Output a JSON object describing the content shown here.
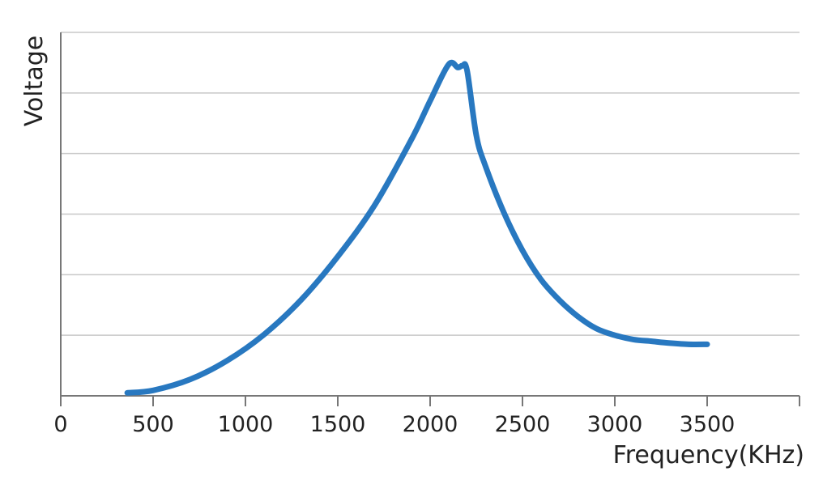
{
  "chart_data": {
    "type": "line",
    "title": "",
    "xlabel": "Frequency(KHz)",
    "ylabel": "Voltage",
    "xlim": [
      0,
      4000
    ],
    "ylim": [
      0,
      6
    ],
    "x_ticks": [
      0,
      500,
      1000,
      1500,
      2000,
      2500,
      3000,
      3500
    ],
    "x_tick_labels": [
      "0",
      "500",
      "1000",
      "1500",
      "2000",
      "2500",
      "3000",
      "3500"
    ],
    "y_gridlines": [
      1,
      2,
      3,
      4,
      5
    ],
    "y_tick_labels_shown": false,
    "grid": "horizontal",
    "series": [
      {
        "color": "#2878c0",
        "x": [
          360,
          500,
          700,
          900,
          1100,
          1300,
          1500,
          1700,
          1900,
          2000,
          2100,
          2150,
          2175,
          2200,
          2250,
          2300,
          2400,
          2500,
          2600,
          2700,
          2800,
          2900,
          3000,
          3100,
          3200,
          3300,
          3400,
          3500
        ],
        "y": [
          0.05,
          0.09,
          0.27,
          0.58,
          1.01,
          1.58,
          2.3,
          3.15,
          4.24,
          4.87,
          5.47,
          5.42,
          5.45,
          5.37,
          4.3,
          3.79,
          3.02,
          2.4,
          1.92,
          1.58,
          1.31,
          1.11,
          1.0,
          0.93,
          0.9,
          0.87,
          0.85,
          0.85
        ]
      }
    ]
  }
}
